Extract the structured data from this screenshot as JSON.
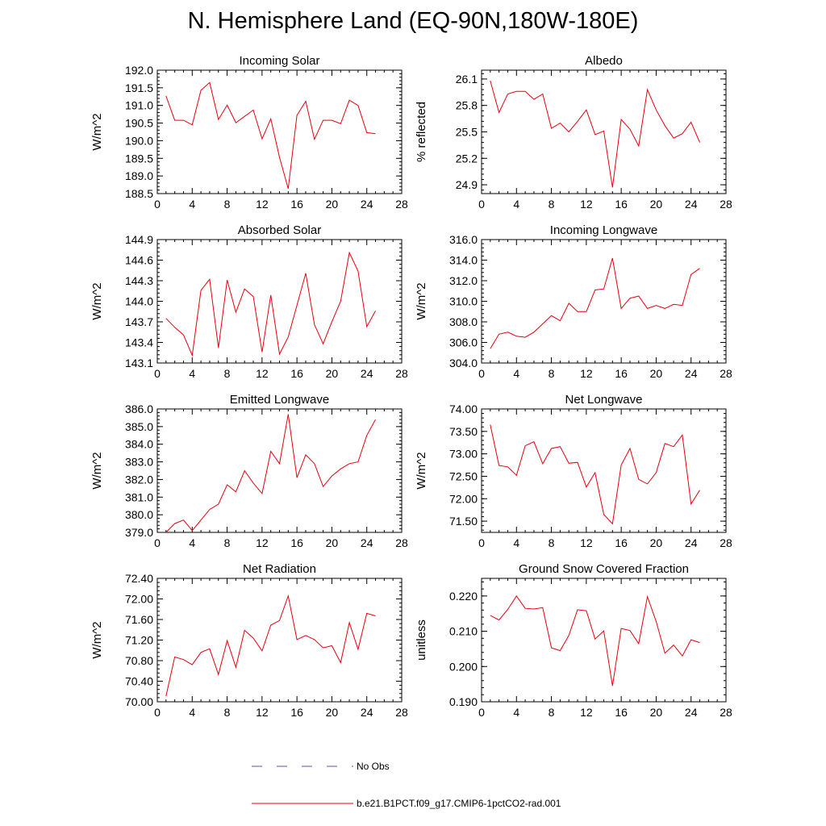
{
  "title": "N. Hemisphere Land (EQ-90N,180W-180E)",
  "colors": {
    "series": "#e8000f",
    "obs": "#5555aa"
  },
  "legend": [
    {
      "label": "No Obs",
      "style": "dashed"
    },
    {
      "label": "b.e21.B1PCT.f09_g17.CMIP6-1pctCO2-rad.001",
      "style": "solid"
    }
  ],
  "chart_data": [
    {
      "type": "line",
      "title": "Incoming Solar",
      "ylabel": "W/m^2",
      "xlim": [
        0,
        28
      ],
      "xticks": [
        0,
        4,
        8,
        12,
        16,
        20,
        24,
        28
      ],
      "ylim": [
        188.5,
        192.0
      ],
      "yticks": [
        "188.5",
        "189.0",
        "189.5",
        "190.0",
        "190.5",
        "191.0",
        "191.5",
        "192.0"
      ],
      "x": [
        1,
        2,
        3,
        4,
        5,
        6,
        7,
        8,
        9,
        10,
        11,
        12,
        13,
        14,
        15,
        16,
        17,
        18,
        19,
        20,
        21,
        22,
        23,
        24,
        25
      ],
      "y": [
        191.27,
        190.58,
        190.58,
        190.45,
        191.43,
        191.65,
        190.6,
        191.01,
        190.51,
        190.69,
        190.87,
        190.05,
        190.62,
        189.53,
        188.64,
        190.72,
        191.12,
        190.04,
        190.58,
        190.58,
        190.48,
        191.15,
        191.0,
        190.23,
        190.2
      ]
    },
    {
      "type": "line",
      "title": "Albedo",
      "ylabel": "% reflected",
      "xlim": [
        0,
        28
      ],
      "xticks": [
        0,
        4,
        8,
        12,
        16,
        20,
        24,
        28
      ],
      "ylim": [
        24.8,
        26.2
      ],
      "yticks": [
        "24.9",
        "25.2",
        "25.5",
        "25.8",
        "26.1"
      ],
      "x": [
        1,
        2,
        3,
        4,
        5,
        6,
        7,
        8,
        9,
        10,
        11,
        12,
        13,
        14,
        15,
        16,
        17,
        18,
        19,
        20,
        21,
        22,
        23,
        24,
        25
      ],
      "y": [
        26.08,
        25.72,
        25.93,
        25.96,
        25.96,
        25.87,
        25.93,
        25.54,
        25.6,
        25.5,
        25.62,
        25.75,
        25.47,
        25.51,
        24.87,
        25.64,
        25.53,
        25.34,
        25.98,
        25.75,
        25.57,
        25.43,
        25.48,
        25.61,
        25.38
      ]
    },
    {
      "type": "line",
      "title": "Absorbed Solar",
      "ylabel": "W/m^2",
      "xlim": [
        0,
        28
      ],
      "xticks": [
        0,
        4,
        8,
        12,
        16,
        20,
        24,
        28
      ],
      "ylim": [
        143.1,
        144.9
      ],
      "yticks": [
        "143.1",
        "143.4",
        "143.7",
        "144.0",
        "144.3",
        "144.6",
        "144.9"
      ],
      "x": [
        1,
        2,
        3,
        4,
        5,
        6,
        7,
        8,
        9,
        10,
        11,
        12,
        13,
        14,
        15,
        16,
        17,
        18,
        19,
        20,
        21,
        22,
        23,
        24,
        25
      ],
      "y": [
        143.75,
        143.62,
        143.51,
        143.21,
        144.16,
        144.32,
        143.32,
        144.31,
        143.84,
        144.18,
        144.07,
        143.26,
        144.09,
        143.23,
        143.48,
        143.94,
        144.41,
        143.66,
        143.38,
        143.7,
        144.0,
        144.71,
        144.44,
        143.63,
        143.86
      ]
    },
    {
      "type": "line",
      "title": "Incoming Longwave",
      "ylabel": "W/m^2",
      "xlim": [
        0,
        28
      ],
      "xticks": [
        0,
        4,
        8,
        12,
        16,
        20,
        24,
        28
      ],
      "ylim": [
        304.0,
        316.0
      ],
      "yticks": [
        "304.0",
        "306.0",
        "308.0",
        "310.0",
        "312.0",
        "314.0",
        "316.0"
      ],
      "x": [
        1,
        2,
        3,
        4,
        5,
        6,
        7,
        8,
        9,
        10,
        11,
        12,
        13,
        14,
        15,
        16,
        17,
        18,
        19,
        20,
        21,
        22,
        23,
        24,
        25
      ],
      "y": [
        305.4,
        306.8,
        307.0,
        306.6,
        306.5,
        307.0,
        307.8,
        308.6,
        308.1,
        309.8,
        309.0,
        309.0,
        311.1,
        311.2,
        314.2,
        309.3,
        310.3,
        310.5,
        309.3,
        309.6,
        309.3,
        309.7,
        309.6,
        312.6,
        313.2
      ]
    },
    {
      "type": "line",
      "title": "Emitted Longwave",
      "ylabel": "W/m^2",
      "xlim": [
        0,
        28
      ],
      "xticks": [
        0,
        4,
        8,
        12,
        16,
        20,
        24,
        28
      ],
      "ylim": [
        379.0,
        386.0
      ],
      "yticks": [
        "379.0",
        "380.0",
        "381.0",
        "382.0",
        "383.0",
        "384.0",
        "385.0",
        "386.0"
      ],
      "x": [
        1,
        2,
        3,
        4,
        5,
        6,
        7,
        8,
        9,
        10,
        11,
        12,
        13,
        14,
        15,
        16,
        17,
        18,
        19,
        20,
        21,
        22,
        23,
        24,
        25
      ],
      "y": [
        379.0,
        379.5,
        379.7,
        379.1,
        379.7,
        380.3,
        380.6,
        381.7,
        381.3,
        382.5,
        381.8,
        381.2,
        383.6,
        382.9,
        385.7,
        382.1,
        383.4,
        382.9,
        381.6,
        382.2,
        382.6,
        382.9,
        383.0,
        384.5,
        385.4
      ]
    },
    {
      "type": "line",
      "title": "Net Longwave",
      "ylabel": "W/m^2",
      "xlim": [
        0,
        28
      ],
      "xticks": [
        0,
        4,
        8,
        12,
        16,
        20,
        24,
        28
      ],
      "ylim": [
        71.25,
        74.0
      ],
      "yticks": [
        "71.50",
        "72.00",
        "72.50",
        "73.00",
        "73.50",
        "74.00"
      ],
      "x": [
        1,
        2,
        3,
        4,
        5,
        6,
        7,
        8,
        9,
        10,
        11,
        12,
        13,
        14,
        15,
        16,
        17,
        18,
        19,
        20,
        21,
        22,
        23,
        24,
        25
      ],
      "y": [
        73.65,
        72.74,
        72.71,
        72.52,
        73.18,
        73.27,
        72.78,
        73.12,
        73.16,
        72.79,
        72.81,
        72.26,
        72.58,
        71.65,
        71.44,
        72.75,
        73.12,
        72.43,
        72.33,
        72.58,
        73.23,
        73.16,
        73.42,
        71.88,
        72.19
      ]
    },
    {
      "type": "line",
      "title": "Net Radiation",
      "ylabel": "W/m^2",
      "xlim": [
        0,
        28
      ],
      "xticks": [
        0,
        4,
        8,
        12,
        16,
        20,
        24,
        28
      ],
      "ylim": [
        70.0,
        72.4
      ],
      "yticks": [
        "70.00",
        "70.40",
        "70.80",
        "71.20",
        "71.60",
        "72.00",
        "72.40"
      ],
      "x": [
        1,
        2,
        3,
        4,
        5,
        6,
        7,
        8,
        9,
        10,
        11,
        12,
        13,
        14,
        15,
        16,
        17,
        18,
        19,
        20,
        21,
        22,
        23,
        24,
        25
      ],
      "y": [
        70.11,
        70.87,
        70.82,
        70.72,
        70.96,
        71.03,
        70.53,
        71.19,
        70.67,
        71.39,
        71.24,
        70.99,
        71.49,
        71.58,
        72.06,
        71.21,
        71.29,
        71.21,
        71.05,
        71.09,
        70.76,
        71.54,
        71.02,
        71.72,
        71.67
      ]
    },
    {
      "type": "line",
      "title": "Ground Snow Covered Fraction",
      "ylabel": "unitless",
      "xlim": [
        0,
        28
      ],
      "xticks": [
        0,
        4,
        8,
        12,
        16,
        20,
        24,
        28
      ],
      "ylim": [
        0.19,
        0.225
      ],
      "yticks": [
        "0.190",
        "0.200",
        "0.210",
        "0.220"
      ],
      "x": [
        1,
        2,
        3,
        4,
        5,
        6,
        7,
        8,
        9,
        10,
        11,
        12,
        13,
        14,
        15,
        16,
        17,
        18,
        19,
        20,
        21,
        22,
        23,
        24,
        25
      ],
      "y": [
        0.2145,
        0.2132,
        0.2162,
        0.22,
        0.2165,
        0.2163,
        0.2167,
        0.2053,
        0.2045,
        0.2088,
        0.2161,
        0.2158,
        0.2078,
        0.2101,
        0.1945,
        0.2108,
        0.2102,
        0.2065,
        0.2198,
        0.2128,
        0.2038,
        0.2061,
        0.203,
        0.2076,
        0.2068
      ]
    }
  ]
}
